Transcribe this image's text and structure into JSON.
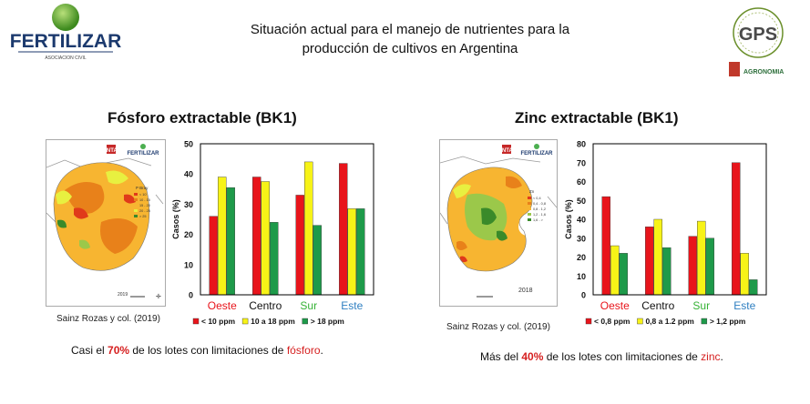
{
  "header": {
    "title_line1": "Situación actual para el manejo de nutrientes para la",
    "title_line2": "producción de cultivos en Argentina",
    "logo_left_text": "FERTILIZAR",
    "logo_left_sub": "ASOCIACION CIVIL",
    "logo_right_text": "GPS",
    "logo_right_sub": "AGRONOMIA"
  },
  "colors": {
    "red": "#e8141b",
    "yellow": "#f7f317",
    "green": "#1e9a4a",
    "grid": "#000000"
  },
  "fosforo": {
    "title": "Fósforo extractable (BK1)",
    "credit": "Sainz Rozas y col. (2019)",
    "map": {
      "inta": "INTA",
      "brand": "FERTILIZAR",
      "legend_title": "P Bray",
      "legend": [
        "< 10",
        "10 - 15",
        "15 - 20",
        "20 - 25",
        "> 25"
      ],
      "year": "2019"
    },
    "note": {
      "pre": "Casi el ",
      "value": "70%",
      "mid": " de los lotes con limitaciones de ",
      "nutrient": "fósforo",
      "end": "."
    }
  },
  "zinc": {
    "title": "Zinc extractable (BK1)",
    "credit": "Sainz Rozas y col. (2019)",
    "map": {
      "inta": "INTA",
      "brand": "FERTILIZAR",
      "legend_title": "Zn",
      "legend": [
        "< 0,4",
        "0,4 - 0,8",
        "0,8 - 1,2",
        "1,2 - 1,6",
        "1,6 - >"
      ],
      "year": "2018"
    },
    "note": {
      "pre": "Más del ",
      "value": "40%",
      "mid": " de los lotes con limitaciones de ",
      "nutrient": "zinc",
      "end": "."
    }
  },
  "chart_data": [
    {
      "type": "bar",
      "title": "Fósforo extractable (BK1)",
      "ylabel": "Casos (%)",
      "xlabel": "",
      "ylim": [
        0,
        50
      ],
      "yticks": [
        0,
        10,
        20,
        30,
        40,
        50
      ],
      "categories": [
        "Oeste",
        "Centro",
        "Sur",
        "Este"
      ],
      "category_colors": [
        "#e8141b",
        "#111111",
        "#35b235",
        "#2f7fc1"
      ],
      "series": [
        {
          "name": "< 10 ppm",
          "color": "#e8141b",
          "values": [
            26,
            39,
            33,
            43.5
          ]
        },
        {
          "name": "10 a 18 ppm",
          "color": "#f7f317",
          "values": [
            39,
            37.5,
            44,
            28.5
          ]
        },
        {
          "name": "> 18 ppm",
          "color": "#1e9a4a",
          "values": [
            35.5,
            24,
            23,
            28.5
          ]
        }
      ]
    },
    {
      "type": "bar",
      "title": "Zinc extractable (BK1)",
      "ylabel": "Casos (%)",
      "xlabel": "",
      "ylim": [
        0,
        80
      ],
      "yticks": [
        0,
        10,
        20,
        30,
        40,
        50,
        60,
        70,
        80
      ],
      "categories": [
        "Oeste",
        "Centro",
        "Sur",
        "Este"
      ],
      "category_colors": [
        "#e8141b",
        "#111111",
        "#35b235",
        "#2f7fc1"
      ],
      "series": [
        {
          "name": "< 0,8 ppm",
          "color": "#e8141b",
          "values": [
            52,
            36,
            31,
            70
          ]
        },
        {
          "name": "0,8 a 1.2 ppm",
          "color": "#f7f317",
          "values": [
            26,
            40,
            39,
            22
          ]
        },
        {
          "name": "> 1,2 ppm",
          "color": "#1e9a4a",
          "values": [
            22,
            25,
            30,
            8
          ]
        }
      ]
    }
  ]
}
